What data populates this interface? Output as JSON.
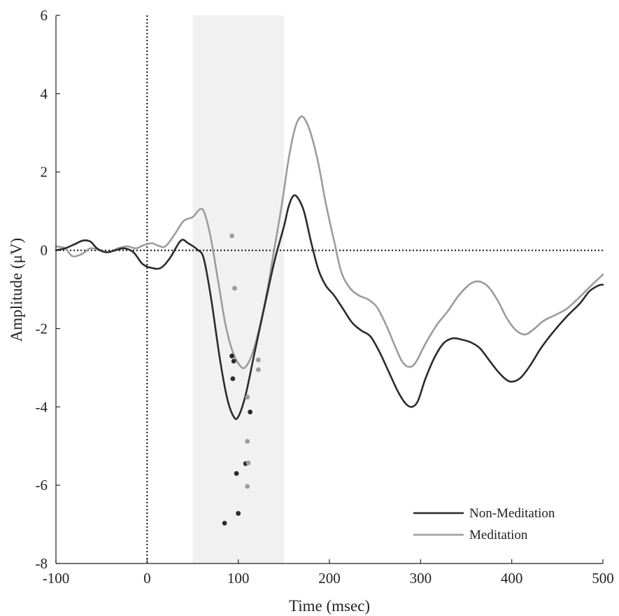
{
  "chart_data": {
    "type": "line",
    "title": "",
    "xlabel": "Time (msec)",
    "ylabel": "Amplitude (μV)",
    "xlim": [
      -100,
      500
    ],
    "ylim": [
      -8,
      6
    ],
    "x_ticks": [
      -100,
      0,
      100,
      200,
      300,
      400,
      500
    ],
    "y_ticks": [
      -8,
      -6,
      -4,
      -2,
      0,
      2,
      4,
      6
    ],
    "grid": false,
    "legend_position": "bottom-right",
    "shaded_region": {
      "x": [
        50,
        150
      ],
      "color": "#f1f1f1"
    },
    "reference_lines": [
      {
        "orientation": "horizontal",
        "value": 0,
        "style": "dotted"
      },
      {
        "orientation": "vertical",
        "value": 0,
        "style": "dotted"
      }
    ],
    "series": [
      {
        "name": "Non-Meditation",
        "color": "#2b2b2b",
        "points": [
          [
            -100,
            0.0
          ],
          [
            -90,
            0.05
          ],
          [
            -80,
            0.15
          ],
          [
            -70,
            0.25
          ],
          [
            -62,
            0.22
          ],
          [
            -55,
            0.05
          ],
          [
            -45,
            -0.05
          ],
          [
            -35,
            0.0
          ],
          [
            -25,
            0.05
          ],
          [
            -15,
            -0.05
          ],
          [
            -5,
            -0.35
          ],
          [
            5,
            -0.45
          ],
          [
            15,
            -0.45
          ],
          [
            25,
            -0.2
          ],
          [
            37,
            0.25
          ],
          [
            45,
            0.18
          ],
          [
            55,
            0.02
          ],
          [
            62,
            -0.2
          ],
          [
            70,
            -1.2
          ],
          [
            80,
            -2.8
          ],
          [
            88,
            -3.8
          ],
          [
            95,
            -4.25
          ],
          [
            100,
            -4.25
          ],
          [
            108,
            -3.7
          ],
          [
            118,
            -2.6
          ],
          [
            130,
            -1.3
          ],
          [
            140,
            -0.25
          ],
          [
            150,
            0.6
          ],
          [
            155,
            1.1
          ],
          [
            160,
            1.38
          ],
          [
            165,
            1.35
          ],
          [
            172,
            1.0
          ],
          [
            180,
            0.2
          ],
          [
            188,
            -0.5
          ],
          [
            196,
            -0.9
          ],
          [
            205,
            -1.15
          ],
          [
            215,
            -1.5
          ],
          [
            225,
            -1.85
          ],
          [
            235,
            -2.05
          ],
          [
            245,
            -2.2
          ],
          [
            255,
            -2.6
          ],
          [
            265,
            -3.1
          ],
          [
            275,
            -3.6
          ],
          [
            283,
            -3.9
          ],
          [
            290,
            -4.0
          ],
          [
            297,
            -3.85
          ],
          [
            305,
            -3.3
          ],
          [
            315,
            -2.75
          ],
          [
            325,
            -2.38
          ],
          [
            335,
            -2.25
          ],
          [
            345,
            -2.28
          ],
          [
            355,
            -2.35
          ],
          [
            365,
            -2.5
          ],
          [
            375,
            -2.8
          ],
          [
            385,
            -3.1
          ],
          [
            395,
            -3.32
          ],
          [
            402,
            -3.35
          ],
          [
            410,
            -3.25
          ],
          [
            420,
            -2.95
          ],
          [
            432,
            -2.5
          ],
          [
            445,
            -2.1
          ],
          [
            460,
            -1.7
          ],
          [
            475,
            -1.35
          ],
          [
            485,
            -1.05
          ],
          [
            495,
            -0.9
          ],
          [
            500,
            -0.88
          ]
        ],
        "extra_points": [
          [
            93,
            -2.7
          ],
          [
            95,
            -2.83
          ],
          [
            94,
            -3.28
          ],
          [
            113,
            -4.13
          ],
          [
            108,
            -5.45
          ],
          [
            98,
            -5.7
          ],
          [
            100,
            -6.72
          ],
          [
            85,
            -6.97
          ]
        ]
      },
      {
        "name": "Meditation",
        "color": "#9c9c9c",
        "points": [
          [
            -100,
            0.1
          ],
          [
            -90,
            0.05
          ],
          [
            -82,
            -0.15
          ],
          [
            -72,
            -0.1
          ],
          [
            -62,
            0.05
          ],
          [
            -52,
            0.0
          ],
          [
            -42,
            -0.05
          ],
          [
            -32,
            0.05
          ],
          [
            -22,
            0.1
          ],
          [
            -12,
            0.05
          ],
          [
            -5,
            0.12
          ],
          [
            5,
            0.18
          ],
          [
            12,
            0.12
          ],
          [
            20,
            0.1
          ],
          [
            30,
            0.4
          ],
          [
            40,
            0.75
          ],
          [
            50,
            0.85
          ],
          [
            58,
            1.05
          ],
          [
            63,
            0.95
          ],
          [
            70,
            0.3
          ],
          [
            78,
            -0.8
          ],
          [
            86,
            -1.9
          ],
          [
            94,
            -2.6
          ],
          [
            102,
            -2.95
          ],
          [
            108,
            -2.98
          ],
          [
            116,
            -2.6
          ],
          [
            124,
            -1.9
          ],
          [
            132,
            -1.0
          ],
          [
            140,
            0.1
          ],
          [
            148,
            1.2
          ],
          [
            155,
            2.3
          ],
          [
            162,
            3.1
          ],
          [
            168,
            3.4
          ],
          [
            173,
            3.35
          ],
          [
            180,
            2.95
          ],
          [
            188,
            2.2
          ],
          [
            196,
            1.2
          ],
          [
            205,
            0.25
          ],
          [
            213,
            -0.55
          ],
          [
            222,
            -0.95
          ],
          [
            232,
            -1.15
          ],
          [
            242,
            -1.25
          ],
          [
            252,
            -1.45
          ],
          [
            262,
            -1.9
          ],
          [
            272,
            -2.45
          ],
          [
            280,
            -2.85
          ],
          [
            288,
            -2.98
          ],
          [
            295,
            -2.85
          ],
          [
            305,
            -2.4
          ],
          [
            318,
            -1.9
          ],
          [
            330,
            -1.55
          ],
          [
            342,
            -1.15
          ],
          [
            355,
            -0.85
          ],
          [
            365,
            -0.8
          ],
          [
            375,
            -0.95
          ],
          [
            385,
            -1.3
          ],
          [
            395,
            -1.75
          ],
          [
            405,
            -2.05
          ],
          [
            415,
            -2.15
          ],
          [
            425,
            -2.0
          ],
          [
            435,
            -1.8
          ],
          [
            448,
            -1.65
          ],
          [
            460,
            -1.5
          ],
          [
            472,
            -1.25
          ],
          [
            485,
            -0.95
          ],
          [
            500,
            -0.62
          ]
        ],
        "extra_points": [
          [
            93,
            0.37
          ],
          [
            96,
            -0.97
          ],
          [
            122,
            -2.8
          ],
          [
            122,
            -3.05
          ],
          [
            110,
            -3.75
          ],
          [
            110,
            -4.88
          ],
          [
            111,
            -5.43
          ],
          [
            110,
            -6.03
          ]
        ]
      }
    ]
  }
}
